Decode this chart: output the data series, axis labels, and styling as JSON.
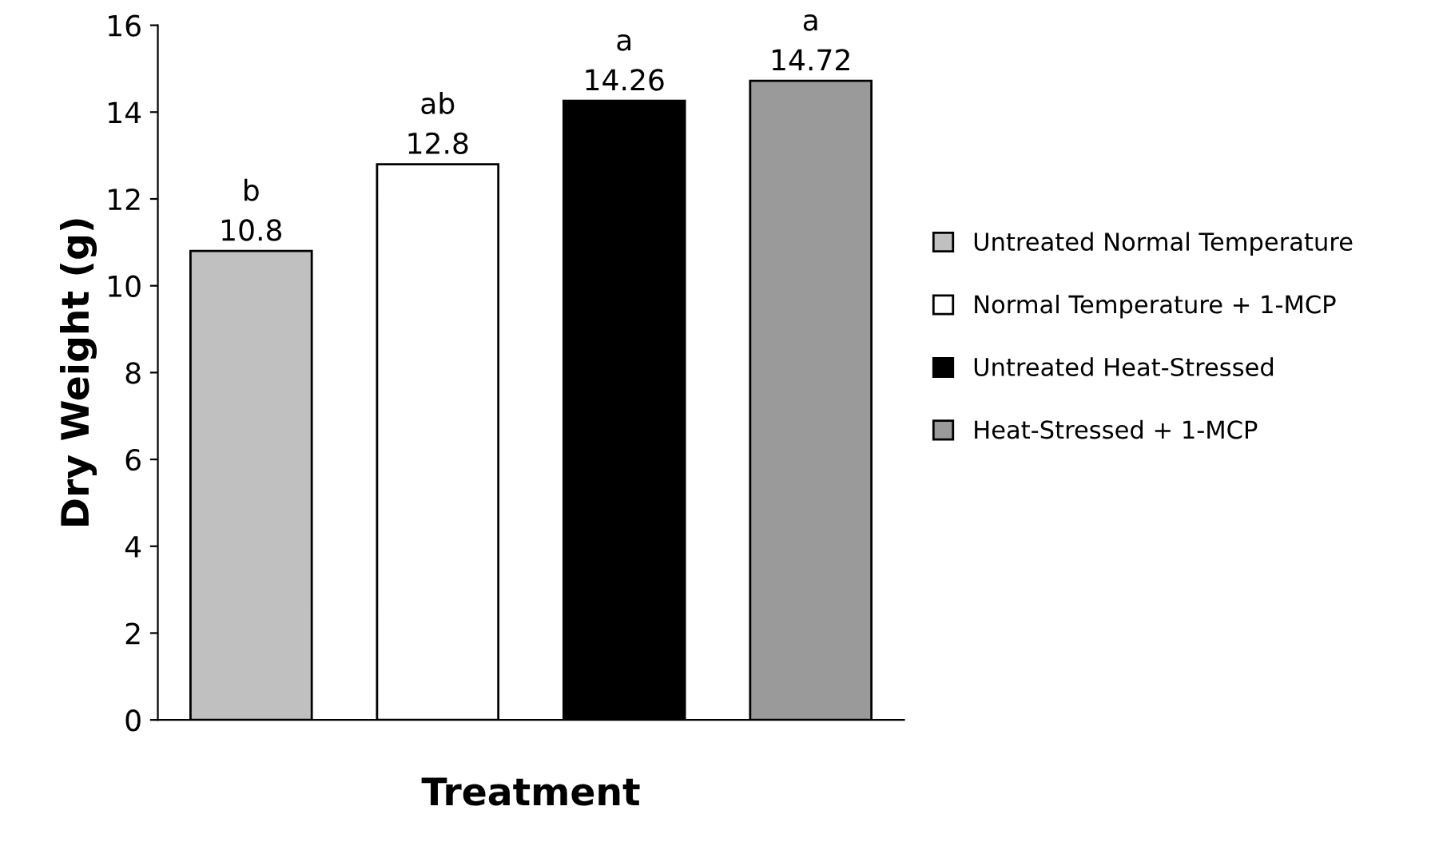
{
  "chart_data": {
    "type": "bar",
    "xlabel": "Treatment",
    "ylabel": "Dry Weight (g)",
    "categories": [
      null,
      null,
      null,
      null
    ],
    "series": [
      {
        "name": "Untreated Normal Temperature",
        "color": "#c0c0c0",
        "values": [
          10.8,
          null,
          null,
          null
        ]
      },
      {
        "name": "Normal Temperature + 1-MCP",
        "color": "#ffffff",
        "values": [
          null,
          12.8,
          null,
          null
        ]
      },
      {
        "name": "Untreated Heat-Stressed",
        "color": "#000000",
        "values": [
          null,
          null,
          14.26,
          null
        ]
      },
      {
        "name": "Heat-Stressed + 1-MCP",
        "color": "#9a9a9a",
        "values": [
          null,
          null,
          null,
          14.72
        ]
      }
    ],
    "annotations": [
      "b",
      "ab",
      "a",
      "a"
    ],
    "data_labels": true,
    "ylim": [
      0,
      16
    ],
    "yticks": [
      0,
      2,
      4,
      6,
      8,
      10,
      12,
      14,
      16
    ],
    "grid": false,
    "legend": "right"
  }
}
